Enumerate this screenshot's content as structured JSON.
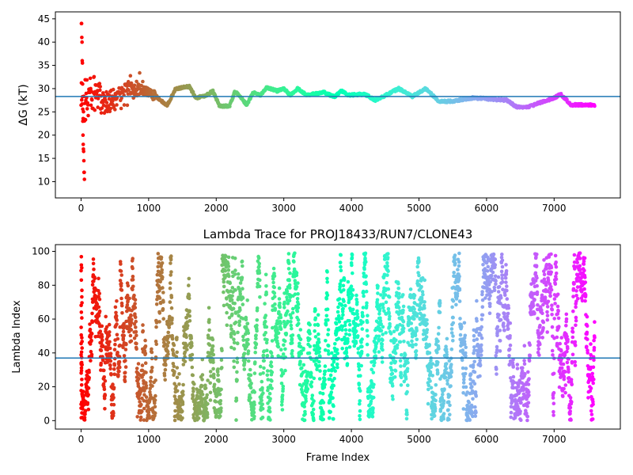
{
  "chart_data": [
    {
      "type": "scatter",
      "title": "",
      "xlabel": "",
      "ylabel": "ΔG (kT)",
      "xlim": [
        -380,
        7980
      ],
      "ylim": [
        6.5,
        46.5
      ],
      "xticks": [
        0,
        1000,
        2000,
        3000,
        4000,
        5000,
        6000,
        7000
      ],
      "yticks": [
        10,
        15,
        20,
        25,
        30,
        35,
        40,
        45
      ],
      "colormap": "rainbow (red at frame 0 to violet at last frame)",
      "hline": 28.3,
      "hline_color": "#1f77b4",
      "grid": false,
      "n_frames": 7600,
      "trace_key_points": [
        {
          "x": 0,
          "y": 26
        },
        {
          "x": 150,
          "y": 29
        },
        {
          "x": 400,
          "y": 27
        },
        {
          "x": 700,
          "y": 30
        },
        {
          "x": 950,
          "y": 29.5
        },
        {
          "x": 1100,
          "y": 28.5
        },
        {
          "x": 1270,
          "y": 26.3
        },
        {
          "x": 1400,
          "y": 30
        },
        {
          "x": 1500,
          "y": 30.2
        },
        {
          "x": 1600,
          "y": 30.5
        },
        {
          "x": 1700,
          "y": 28
        },
        {
          "x": 1850,
          "y": 28.5
        },
        {
          "x": 1950,
          "y": 29.5
        },
        {
          "x": 2050,
          "y": 26.2
        },
        {
          "x": 2200,
          "y": 26.3
        },
        {
          "x": 2280,
          "y": 29.5
        },
        {
          "x": 2370,
          "y": 28
        },
        {
          "x": 2450,
          "y": 26.5
        },
        {
          "x": 2550,
          "y": 29.2
        },
        {
          "x": 2650,
          "y": 28.5
        },
        {
          "x": 2750,
          "y": 30.3
        },
        {
          "x": 2900,
          "y": 29.5
        },
        {
          "x": 3000,
          "y": 30
        },
        {
          "x": 3100,
          "y": 28.5
        },
        {
          "x": 3200,
          "y": 30
        },
        {
          "x": 3350,
          "y": 28.6
        },
        {
          "x": 3600,
          "y": 29.2
        },
        {
          "x": 3750,
          "y": 28.2
        },
        {
          "x": 3850,
          "y": 29.5
        },
        {
          "x": 3950,
          "y": 28.6
        },
        {
          "x": 4200,
          "y": 28.8
        },
        {
          "x": 4350,
          "y": 27.5
        },
        {
          "x": 4500,
          "y": 28.5
        },
        {
          "x": 4700,
          "y": 30
        },
        {
          "x": 4900,
          "y": 28.3
        },
        {
          "x": 5100,
          "y": 30
        },
        {
          "x": 5300,
          "y": 27.2
        },
        {
          "x": 5500,
          "y": 27.3
        },
        {
          "x": 5800,
          "y": 28
        },
        {
          "x": 6000,
          "y": 27.8
        },
        {
          "x": 6300,
          "y": 27.5
        },
        {
          "x": 6450,
          "y": 26
        },
        {
          "x": 6600,
          "y": 26
        },
        {
          "x": 6800,
          "y": 27
        },
        {
          "x": 7000,
          "y": 28
        },
        {
          "x": 7100,
          "y": 28.8
        },
        {
          "x": 7250,
          "y": 26.5
        },
        {
          "x": 7600,
          "y": 26.5
        }
      ],
      "early_outliers": [
        44,
        44,
        41,
        40,
        36,
        35.5,
        31,
        23,
        20,
        18,
        17,
        16.5,
        14.5,
        12,
        12,
        10.5
      ]
    },
    {
      "type": "scatter",
      "title": "Lambda Trace for PROJ18433/RUN7/CLONE43",
      "xlabel": "Frame Index",
      "ylabel": "Lambda Index",
      "xlim": [
        -380,
        7980
      ],
      "ylim": [
        -5,
        104
      ],
      "xticks": [
        0,
        1000,
        2000,
        3000,
        4000,
        5000,
        6000,
        7000
      ],
      "yticks": [
        0,
        20,
        40,
        60,
        80,
        100
      ],
      "colormap": "rainbow (red at frame 0 to violet at last frame)",
      "hline": 37,
      "hline_color": "#1f77b4",
      "grid": false,
      "n_frames": 7600,
      "value_range": [
        0,
        99
      ]
    }
  ]
}
